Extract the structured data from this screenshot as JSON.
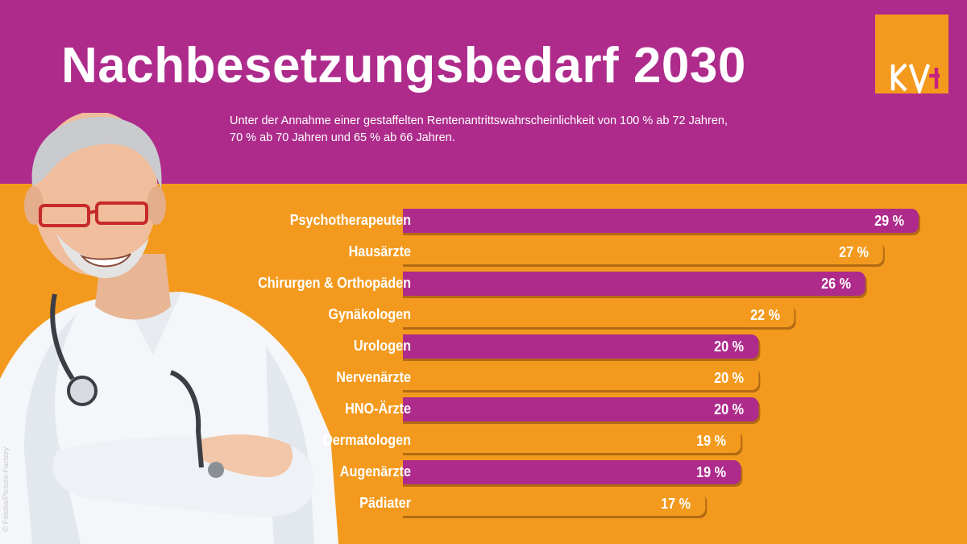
{
  "chart_data": {
    "type": "bar",
    "orientation": "horizontal",
    "title": "Nachbesetzungsbedarf 2030",
    "subtitle_lines": [
      "Unter der Annahme einer gestaffelten Rentenantrittswahrscheinlichkeit von 100 % ab 72 Jahren,",
      "70 % ab 70 Jahren und 65 % ab 66 Jahren."
    ],
    "categories": [
      "Psychotherapeuten",
      "Hausärzte",
      "Chirurgen & Orthopäden",
      "Gynäkologen",
      "Urologen",
      "Nervenärzte",
      "HNO-Ärzte",
      "Dermatologen",
      "Augenärzte",
      "Pädiater"
    ],
    "values": [
      29,
      27,
      26,
      22,
      20,
      20,
      20,
      19,
      19,
      17
    ],
    "value_labels": [
      "29 %",
      "27 %",
      "26 %",
      "22 %",
      "20 %",
      "20 %",
      "20 %",
      "19 %",
      "19 %",
      "17 %"
    ],
    "unit": "%",
    "xlim": [
      0,
      29
    ],
    "xlabel": "",
    "ylabel": "",
    "grid": false,
    "legend": "none"
  },
  "logo": {
    "text": "KV",
    "name": "KV logo"
  },
  "photo_credit": "© Fotolia/Picture-Factory",
  "colors": {
    "magenta": "#AE2B8C",
    "orange": "#F39A1E",
    "text": "#FFFFFF"
  }
}
